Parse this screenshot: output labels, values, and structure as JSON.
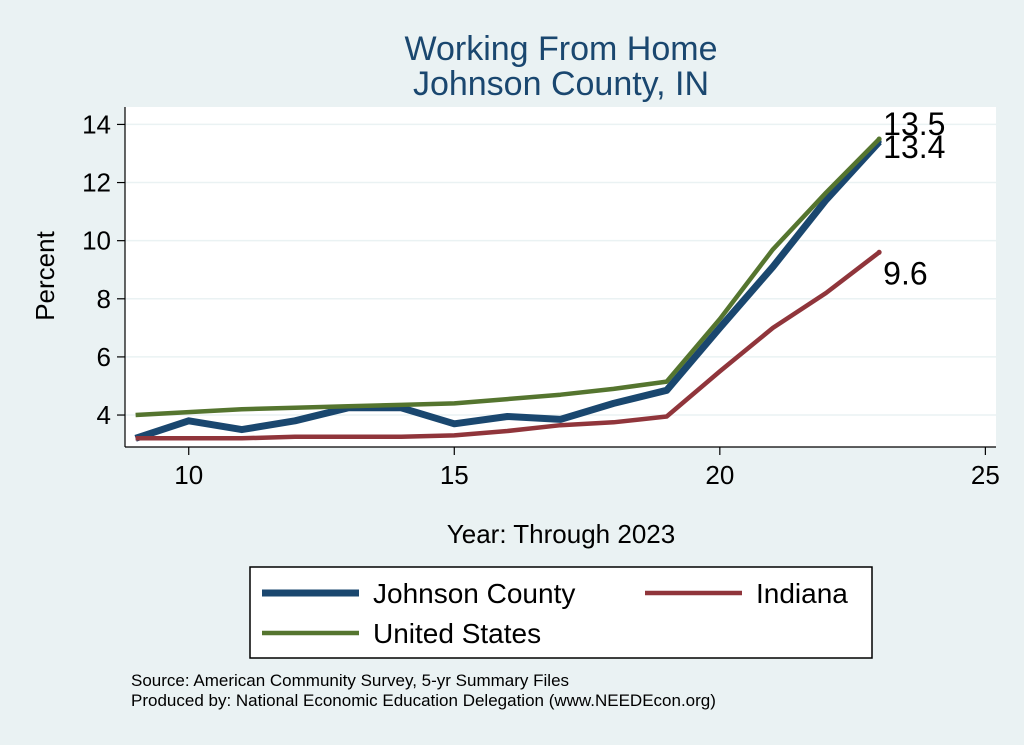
{
  "chart_data": {
    "type": "line",
    "title": "Working From Home",
    "subtitle": "Johnson County, IN",
    "xlabel": "Year: Through 2023",
    "ylabel": "Percent",
    "xlim": [
      8.8,
      25.2
    ],
    "ylim": [
      2.9,
      14.6
    ],
    "xticks": [
      10,
      15,
      20,
      25
    ],
    "yticks": [
      4,
      6,
      8,
      10,
      12,
      14
    ],
    "grid": "horizontal",
    "legend_position": "bottom",
    "series": [
      {
        "name": "Johnson County",
        "color": "#1a476f",
        "x": [
          9,
          10,
          11,
          12,
          13,
          14,
          15,
          16,
          17,
          18,
          19,
          20,
          21,
          22,
          23
        ],
        "values": [
          3.2,
          3.8,
          3.5,
          3.8,
          4.25,
          4.25,
          3.7,
          3.95,
          3.85,
          4.4,
          4.85,
          7.0,
          9.1,
          11.4,
          13.4
        ],
        "end_label": "13.4"
      },
      {
        "name": "Indiana",
        "color": "#90353b",
        "x": [
          9,
          10,
          11,
          12,
          13,
          14,
          15,
          16,
          17,
          18,
          19,
          20,
          21,
          22,
          23
        ],
        "values": [
          3.2,
          3.2,
          3.2,
          3.25,
          3.25,
          3.25,
          3.3,
          3.45,
          3.65,
          3.75,
          3.95,
          5.5,
          7.0,
          8.2,
          9.6
        ],
        "end_label": "9.6"
      },
      {
        "name": "United States",
        "color": "#55752f",
        "x": [
          9,
          10,
          11,
          12,
          13,
          14,
          15,
          16,
          17,
          18,
          19,
          20,
          21,
          22,
          23
        ],
        "values": [
          4.0,
          4.1,
          4.2,
          4.25,
          4.3,
          4.35,
          4.4,
          4.55,
          4.7,
          4.9,
          5.15,
          7.3,
          9.7,
          11.65,
          13.5
        ],
        "end_label": "13.5"
      }
    ]
  },
  "notes": {
    "source": "Source: American Community Survey, 5-yr Summary Files",
    "produced": "Produced by: National Economic Education Delegation (www.NEEDEcon.org)"
  }
}
